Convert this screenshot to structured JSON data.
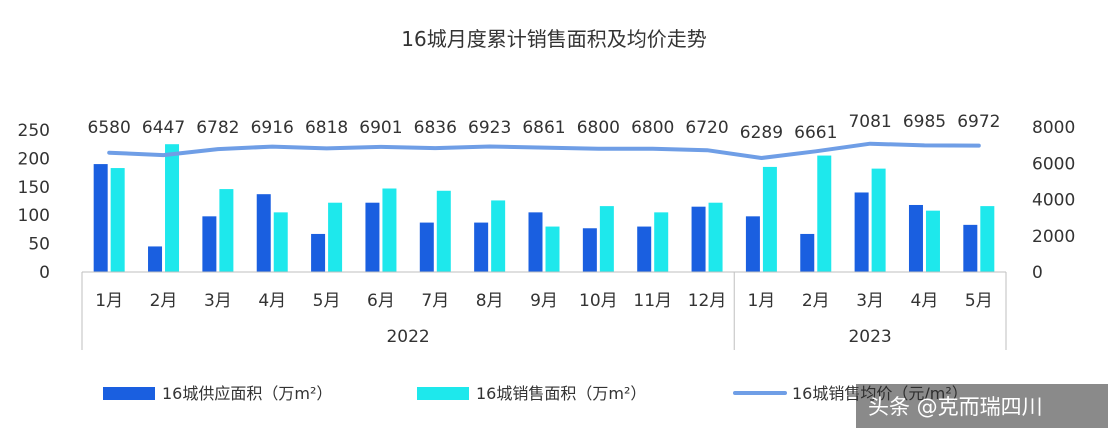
{
  "chart_data": {
    "type": "bar+line",
    "title": "16城月度累计销售面积及均价走势",
    "categories": [
      "1月",
      "2月",
      "3月",
      "4月",
      "5月",
      "6月",
      "7月",
      "8月",
      "9月",
      "10月",
      "11月",
      "12月",
      "1月",
      "2月",
      "3月",
      "4月",
      "5月"
    ],
    "groups": [
      {
        "label": "2022",
        "count": 12
      },
      {
        "label": "2023",
        "count": 5
      }
    ],
    "series": [
      {
        "name": "16城供应面积（万m²）",
        "kind": "bar",
        "axis": "left",
        "color": "#1a5fe0",
        "values": [
          190,
          45,
          98,
          137,
          67,
          122,
          87,
          87,
          105,
          77,
          80,
          115,
          98,
          67,
          140,
          118,
          83
        ]
      },
      {
        "name": "16城销售面积（万m²）",
        "kind": "bar",
        "axis": "left",
        "color": "#1ee8ec",
        "values": [
          183,
          225,
          146,
          105,
          122,
          147,
          143,
          126,
          80,
          116,
          105,
          122,
          185,
          205,
          182,
          108,
          116
        ]
      },
      {
        "name": "16城销售均价（元/m²）",
        "kind": "line",
        "axis": "right",
        "color": "#6f9ee6",
        "values": [
          6580,
          6447,
          6782,
          6916,
          6818,
          6901,
          6836,
          6923,
          6861,
          6800,
          6800,
          6720,
          6289,
          6661,
          7081,
          6985,
          6972
        ]
      }
    ],
    "price_labels": [
      "6580",
      "6447",
      "6782",
      "6916",
      "6818",
      "6901",
      "6836",
      "6923",
      "6861",
      "6800",
      "6800",
      "6720",
      "6289",
      "6661",
      "7081",
      "6985",
      "6972"
    ],
    "y_left": {
      "ticks": [
        "0",
        "50",
        "100",
        "150",
        "200",
        "250"
      ],
      "min": 0,
      "max": 250
    },
    "y_right": {
      "ticks": [
        "0",
        "2000",
        "4000",
        "6000",
        "8000"
      ],
      "min": 0,
      "max": 8000
    },
    "grid": false,
    "legend_position": "bottom"
  },
  "legend": {
    "supply": "16城供应面积（万m²）",
    "sales": "16城销售面积（万m²）",
    "price": "16城销售均价（元/m²）"
  },
  "watermark": "头条 @克而瑞四川"
}
